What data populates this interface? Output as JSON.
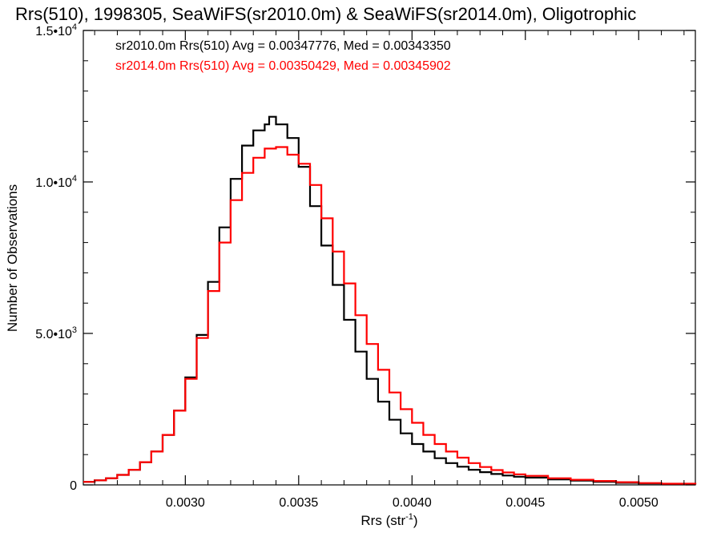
{
  "chart_data": {
    "type": "line",
    "title": "Rrs(510), 1998305, SeaWiFS(sr2010.0m) & SeaWiFS(sr2014.0m), Oligotrophic",
    "xlabel_main": "Rrs (str",
    "xlabel_sup": "-1",
    "xlabel_close": ")",
    "ylabel": "Number of Observations",
    "xlim": [
      0.00255,
      0.00525
    ],
    "ylim": [
      0,
      15000
    ],
    "x_ticks": [
      {
        "value": 0.003,
        "label": "0.0030"
      },
      {
        "value": 0.0035,
        "label": "0.0035"
      },
      {
        "value": 0.004,
        "label": "0.0040"
      },
      {
        "value": 0.0045,
        "label": "0.0045"
      },
      {
        "value": 0.005,
        "label": "0.0050"
      }
    ],
    "y_ticks": [
      {
        "value": 0,
        "label": "0",
        "sup": ""
      },
      {
        "value": 5000,
        "label": "5.0•10",
        "sup": "3"
      },
      {
        "value": 10000,
        "label": "1.0•10",
        "sup": "4"
      },
      {
        "value": 15000,
        "label": "1.5•10",
        "sup": "4"
      }
    ],
    "annotations": [
      {
        "text": "sr2010.0m Rrs(510) Avg = 0.00347776, Med = 0.00343350",
        "color": "#000000"
      },
      {
        "text": "sr2014.0m Rrs(510) Avg = 0.00350429, Med = 0.00345902",
        "color": "#ff0000"
      }
    ],
    "series": [
      {
        "color": "#000000",
        "x": [
          0.00255,
          0.0026,
          0.00265,
          0.0027,
          0.00275,
          0.0028,
          0.00285,
          0.0029,
          0.00295,
          0.003,
          0.00305,
          0.0031,
          0.00315,
          0.0032,
          0.00325,
          0.0033,
          0.00335,
          0.00337,
          0.0034,
          0.00345,
          0.0035,
          0.00355,
          0.0036,
          0.00365,
          0.0037,
          0.00375,
          0.0038,
          0.00385,
          0.0039,
          0.00395,
          0.004,
          0.00405,
          0.0041,
          0.00415,
          0.0042,
          0.00425,
          0.0043,
          0.00435,
          0.0044,
          0.00445,
          0.0045,
          0.0046,
          0.0047,
          0.0048,
          0.0049,
          0.005,
          0.0051,
          0.00525
        ],
        "y": [
          100,
          150,
          220,
          330,
          500,
          750,
          1100,
          1650,
          2450,
          3550,
          4950,
          6700,
          8500,
          10100,
          11200,
          11700,
          11900,
          12150,
          11900,
          11450,
          10500,
          9200,
          7900,
          6600,
          5450,
          4400,
          3500,
          2750,
          2150,
          1700,
          1350,
          1100,
          880,
          720,
          600,
          500,
          420,
          360,
          310,
          270,
          240,
          180,
          140,
          100,
          70,
          50,
          30,
          10
        ]
      },
      {
        "color": "#ff0000",
        "x": [
          0.00255,
          0.0026,
          0.00265,
          0.0027,
          0.00275,
          0.0028,
          0.00285,
          0.0029,
          0.00295,
          0.003,
          0.00305,
          0.0031,
          0.00315,
          0.0032,
          0.00325,
          0.0033,
          0.00335,
          0.0034,
          0.00345,
          0.0035,
          0.00355,
          0.0036,
          0.00365,
          0.0037,
          0.00375,
          0.0038,
          0.00385,
          0.0039,
          0.00395,
          0.004,
          0.00405,
          0.0041,
          0.00415,
          0.0042,
          0.00425,
          0.0043,
          0.00435,
          0.0044,
          0.00445,
          0.0045,
          0.0046,
          0.0047,
          0.0048,
          0.0049,
          0.005,
          0.0051,
          0.00525
        ],
        "y": [
          100,
          150,
          220,
          330,
          500,
          750,
          1100,
          1650,
          2450,
          3500,
          4850,
          6400,
          8000,
          9400,
          10300,
          10800,
          11100,
          11150,
          10900,
          10600,
          9900,
          8800,
          7700,
          6650,
          5600,
          4650,
          3800,
          3050,
          2500,
          2050,
          1650,
          1350,
          1100,
          900,
          720,
          590,
          490,
          410,
          350,
          300,
          220,
          170,
          130,
          90,
          60,
          40,
          15
        ]
      }
    ]
  }
}
